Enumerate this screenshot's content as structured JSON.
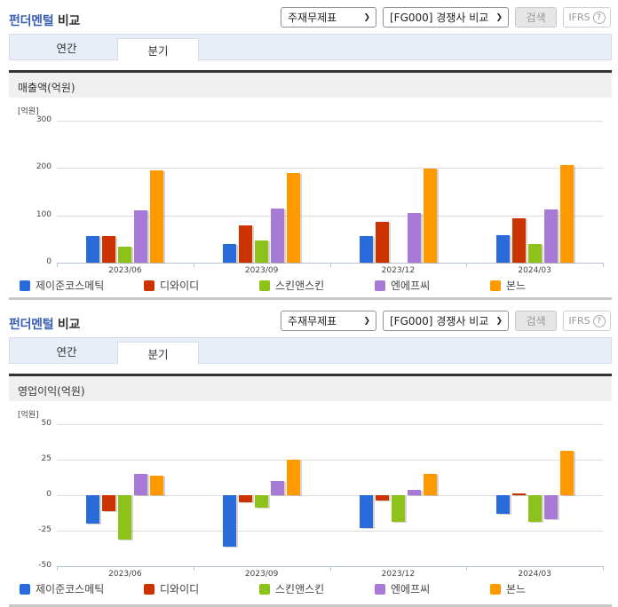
{
  "colors": {
    "series": [
      "#2a6bdb",
      "#cc3300",
      "#8cc21a",
      "#a87ad8",
      "#ff9900"
    ],
    "title_accent": "#3a5fb0",
    "tab_bar_bg": "#e8eef8",
    "subhead_bg": "#f0f0f0"
  },
  "panels": [
    {
      "title_highlight": "펀더멘털",
      "title_rest": " 비교",
      "select_statement": "주재무제표",
      "select_compare": "[FG000] 경쟁사 비교",
      "search_label": "검색",
      "ifrs_label": "IFRS",
      "ifrs_help": "?",
      "tabs": [
        {
          "label": "연간",
          "active": false
        },
        {
          "label": "분기",
          "active": true
        }
      ],
      "subhead": "매출액(억원)",
      "unit": "[억원]",
      "legend": [
        "제이준코스메틱",
        "디와이디",
        "스킨앤스킨",
        "엔에프씨",
        "본느"
      ]
    },
    {
      "title_highlight": "펀더멘털",
      "title_rest": " 비교",
      "select_statement": "주재무제표",
      "select_compare": "[FG000] 경쟁사 비교",
      "search_label": "검색",
      "ifrs_label": "IFRS",
      "ifrs_help": "?",
      "tabs": [
        {
          "label": "연간",
          "active": false
        },
        {
          "label": "분기",
          "active": true
        }
      ],
      "subhead": "영업이익(억원)",
      "unit": "[억원]",
      "legend": [
        "제이준코스메틱",
        "디와이디",
        "스킨앤스킨",
        "엔에프씨",
        "본느"
      ]
    }
  ],
  "chart_data": [
    {
      "type": "bar",
      "title": "매출액(억원)",
      "ylabel": "[억원]",
      "xlabel": "",
      "categories": [
        "2023/06",
        "2023/09",
        "2023/12",
        "2024/03"
      ],
      "yticks": [
        0,
        100,
        200,
        300
      ],
      "ylim": [
        0,
        300
      ],
      "grid": true,
      "legend_position": "bottom",
      "series": [
        {
          "name": "제이준코스메틱",
          "values": [
            56,
            40,
            56,
            58
          ]
        },
        {
          "name": "디와이디",
          "values": [
            56,
            78,
            86,
            93
          ]
        },
        {
          "name": "스킨앤스킨",
          "values": [
            33,
            46,
            0,
            40
          ]
        },
        {
          "name": "엔에프씨",
          "values": [
            110,
            115,
            105,
            112
          ]
        },
        {
          "name": "본느",
          "values": [
            195,
            190,
            198,
            207
          ]
        }
      ]
    },
    {
      "type": "bar",
      "title": "영업이익(억원)",
      "ylabel": "[억원]",
      "xlabel": "",
      "categories": [
        "2023/06",
        "2023/09",
        "2023/12",
        "2024/03"
      ],
      "yticks": [
        -50,
        -25,
        0,
        25,
        50
      ],
      "ylim": [
        -50,
        50
      ],
      "grid": true,
      "legend_position": "bottom",
      "series": [
        {
          "name": "제이준코스메틱",
          "values": [
            -20,
            -36,
            -23,
            -13
          ]
        },
        {
          "name": "디와이디",
          "values": [
            -11,
            -5,
            -4,
            1
          ]
        },
        {
          "name": "스킨앤스킨",
          "values": [
            -31,
            -9,
            -19,
            -19
          ]
        },
        {
          "name": "엔에프씨",
          "values": [
            15,
            10,
            4,
            -17
          ]
        },
        {
          "name": "본느",
          "values": [
            14,
            25,
            15,
            31
          ]
        }
      ]
    }
  ]
}
